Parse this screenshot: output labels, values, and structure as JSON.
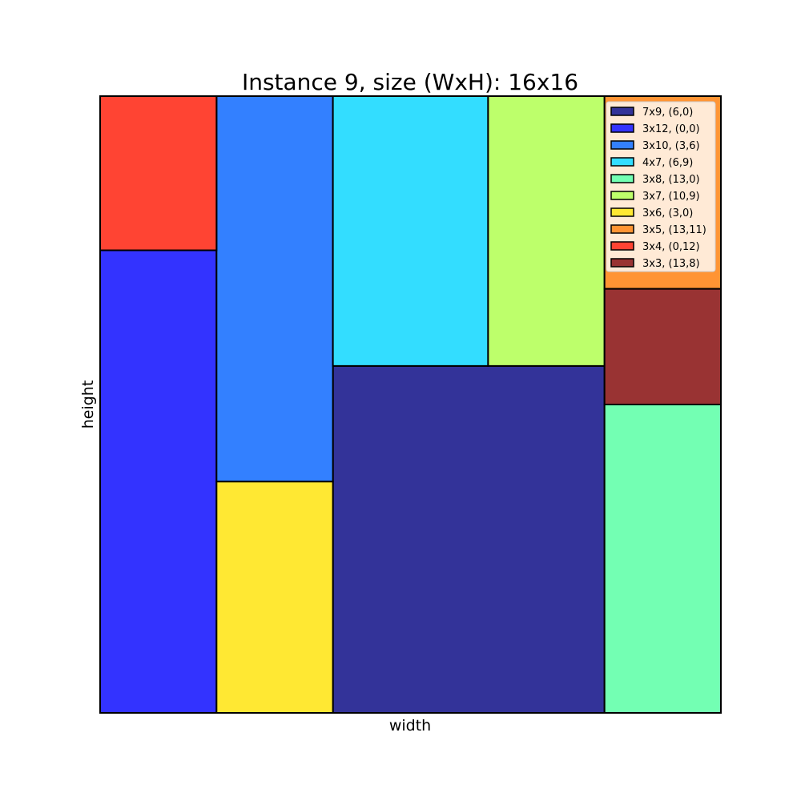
{
  "chart_data": {
    "type": "rectangle-packing",
    "title": "Instance 9, size (WxH): 16x16",
    "xlabel": "width",
    "ylabel": "height",
    "container": {
      "width": 16,
      "height": 16
    },
    "legend_position": "top-right",
    "rectangles": [
      {
        "label": "7x9, (6,0)",
        "w": 7,
        "h": 9,
        "x": 6,
        "y": 0,
        "color": "#333399"
      },
      {
        "label": "3x12, (0,0)",
        "w": 3,
        "h": 12,
        "x": 0,
        "y": 0,
        "color": "#3333ff"
      },
      {
        "label": "3x10, (3,6)",
        "w": 3,
        "h": 10,
        "x": 3,
        "y": 6,
        "color": "#3380ff"
      },
      {
        "label": "4x7, (6,9)",
        "w": 4,
        "h": 7,
        "x": 6,
        "y": 9,
        "color": "#33ddff"
      },
      {
        "label": "3x8, (13,0)",
        "w": 3,
        "h": 8,
        "x": 13,
        "y": 0,
        "color": "#73ffb3"
      },
      {
        "label": "3x7, (10,9)",
        "w": 3,
        "h": 7,
        "x": 10,
        "y": 9,
        "color": "#bdff6b"
      },
      {
        "label": "3x6, (3,0)",
        "w": 3,
        "h": 6,
        "x": 3,
        "y": 0,
        "color": "#ffe833"
      },
      {
        "label": "3x5, (13,11)",
        "w": 3,
        "h": 5,
        "x": 13,
        "y": 11,
        "color": "#ff9433"
      },
      {
        "label": "3x4, (0,12)",
        "w": 3,
        "h": 4,
        "x": 0,
        "y": 12,
        "color": "#ff4433"
      },
      {
        "label": "3x3, (13,8)",
        "w": 3,
        "h": 3,
        "x": 13,
        "y": 8,
        "color": "#993333"
      }
    ]
  }
}
